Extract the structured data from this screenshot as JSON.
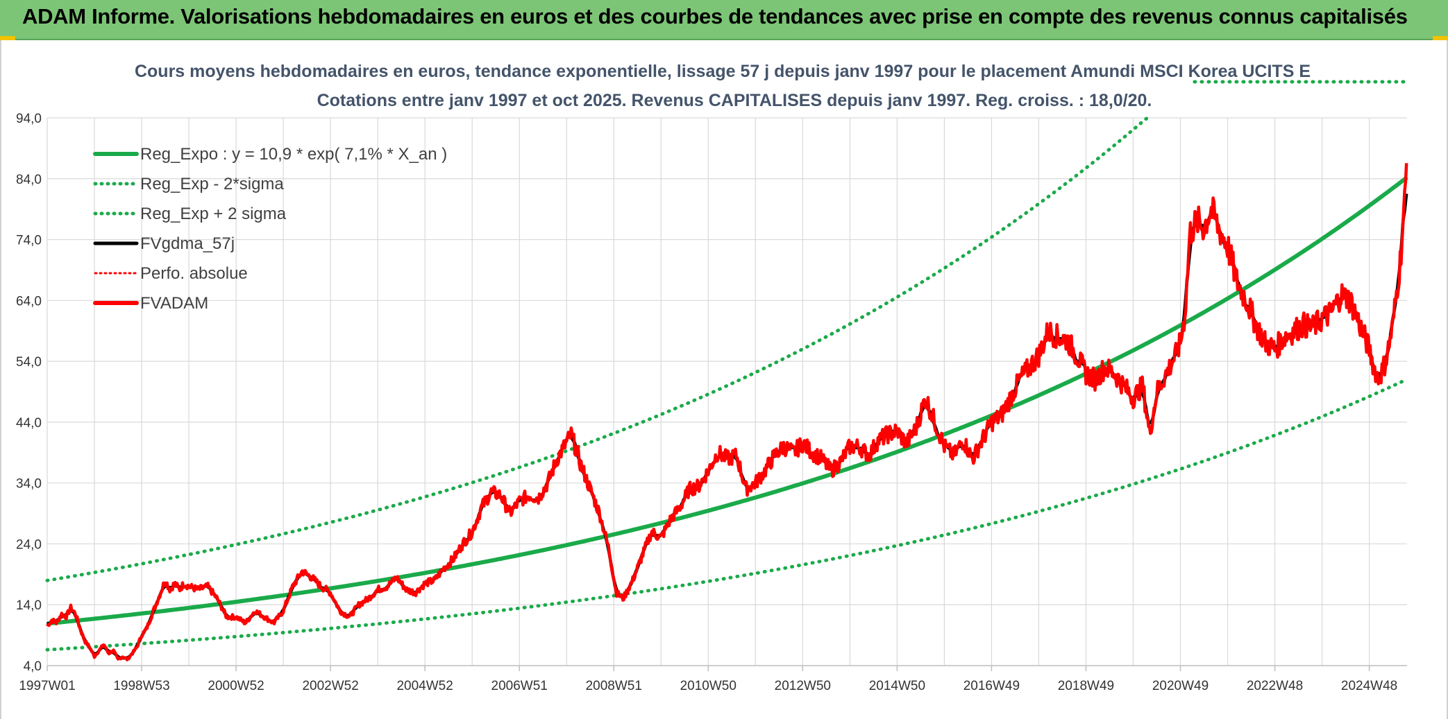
{
  "banner": {
    "title": "ADAM Informe. Valorisations hebdomadaires en euros et des courbes de tendances avec prise en compte des revenus connus capitalisés"
  },
  "colors": {
    "banner_bg": "#7cc576",
    "regression": "#1aaa4a",
    "smooth": "#000000",
    "price": "#ff0000",
    "axis_text": "#333333",
    "title_text": "#44546a",
    "grid": "#d9d9d9"
  },
  "chart_data": {
    "type": "line",
    "title_line1": "Cours moyens hebdomadaires en euros, tendance exponentielle, lissage 57 j depuis janv 1997 pour le placement Amundi MSCI Korea UCITS E",
    "title_line2": "Cotations entre janv 1997 et oct 2025. Revenus CAPITALISES depuis janv 1997. Reg. croiss. : 18,0/20.",
    "ylim": [
      4.0,
      94.0
    ],
    "xlim": [
      1997.0,
      2025.8
    ],
    "grid": true,
    "legend_position": "top-left",
    "y_ticks": [
      "4,0",
      "14,0",
      "24,0",
      "34,0",
      "44,0",
      "54,0",
      "64,0",
      "74,0",
      "84,0",
      "94,0"
    ],
    "x_ticks": [
      {
        "label": "1997W01",
        "year": 1997.0
      },
      {
        "label": "1998W53",
        "year": 1999.0
      },
      {
        "label": "2000W52",
        "year": 2001.0
      },
      {
        "label": "2002W52",
        "year": 2003.0
      },
      {
        "label": "2004W52",
        "year": 2005.0
      },
      {
        "label": "2006W51",
        "year": 2007.0
      },
      {
        "label": "2008W51",
        "year": 2009.0
      },
      {
        "label": "2010W50",
        "year": 2011.0
      },
      {
        "label": "2012W50",
        "year": 2013.0
      },
      {
        "label": "2014W50",
        "year": 2015.0
      },
      {
        "label": "2016W49",
        "year": 2017.0
      },
      {
        "label": "2018W49",
        "year": 2019.0
      },
      {
        "label": "2020W49",
        "year": 2021.0
      },
      {
        "label": "2022W48",
        "year": 2023.0
      },
      {
        "label": "2024W48",
        "year": 2025.0
      }
    ],
    "regression": {
      "a": 10.9,
      "rate": 0.071,
      "sigma2_factor": 1.65
    },
    "legend": [
      {
        "key": "reg",
        "label": "Reg_Expo : y = 10,9 * exp( 7,1% *  X_an )"
      },
      {
        "key": "low",
        "label": "Reg_Exp - 2*sigma"
      },
      {
        "key": "high",
        "label": "Reg_Exp + 2 sigma"
      },
      {
        "key": "smooth",
        "label": "FVgdma_57j"
      },
      {
        "key": "perfo",
        "label": "Perfo. absolue"
      },
      {
        "key": "price",
        "label": "FVADAM"
      }
    ],
    "price_series": {
      "name": "FVADAM",
      "points": [
        [
          1997.0,
          10.5
        ],
        [
          1997.1,
          11.5
        ],
        [
          1997.2,
          11.0
        ],
        [
          1997.3,
          12.5
        ],
        [
          1997.4,
          12.0
        ],
        [
          1997.5,
          13.5
        ],
        [
          1997.6,
          12.5
        ],
        [
          1997.7,
          10.0
        ],
        [
          1997.8,
          8.0
        ],
        [
          1997.9,
          7.0
        ],
        [
          1998.0,
          5.5
        ],
        [
          1998.1,
          6.5
        ],
        [
          1998.2,
          7.5
        ],
        [
          1998.3,
          6.0
        ],
        [
          1998.4,
          6.5
        ],
        [
          1998.5,
          5.0
        ],
        [
          1998.6,
          5.5
        ],
        [
          1998.7,
          5.0
        ],
        [
          1998.8,
          6.0
        ],
        [
          1998.9,
          7.0
        ],
        [
          1999.0,
          9.0
        ],
        [
          1999.1,
          10.0
        ],
        [
          1999.2,
          12.0
        ],
        [
          1999.3,
          14.0
        ],
        [
          1999.4,
          16.0
        ],
        [
          1999.5,
          18.0
        ],
        [
          1999.6,
          16.5
        ],
        [
          1999.7,
          17.5
        ],
        [
          1999.8,
          16.5
        ],
        [
          1999.9,
          17.5
        ],
        [
          2000.0,
          17.0
        ],
        [
          2000.2,
          16.5
        ],
        [
          2000.4,
          17.0
        ],
        [
          2000.6,
          15.0
        ],
        [
          2000.8,
          12.0
        ],
        [
          2001.0,
          12.0
        ],
        [
          2001.2,
          11.0
        ],
        [
          2001.4,
          13.0
        ],
        [
          2001.6,
          12.0
        ],
        [
          2001.8,
          11.0
        ],
        [
          2002.0,
          13.0
        ],
        [
          2002.2,
          17.0
        ],
        [
          2002.4,
          19.5
        ],
        [
          2002.6,
          18.5
        ],
        [
          2002.8,
          17.0
        ],
        [
          2003.0,
          16.0
        ],
        [
          2003.2,
          13.0
        ],
        [
          2003.4,
          12.0
        ],
        [
          2003.6,
          14.0
        ],
        [
          2003.8,
          15.0
        ],
        [
          2004.0,
          16.5
        ],
        [
          2004.2,
          17.0
        ],
        [
          2004.4,
          18.5
        ],
        [
          2004.6,
          16.5
        ],
        [
          2004.8,
          16.0
        ],
        [
          2005.0,
          17.5
        ],
        [
          2005.2,
          18.0
        ],
        [
          2005.4,
          20.0
        ],
        [
          2005.6,
          21.5
        ],
        [
          2005.8,
          24.0
        ],
        [
          2006.0,
          26.0
        ],
        [
          2006.2,
          30.0
        ],
        [
          2006.4,
          32.5
        ],
        [
          2006.6,
          32.0
        ],
        [
          2006.8,
          29.0
        ],
        [
          2007.0,
          31.0
        ],
        [
          2007.2,
          32.0
        ],
        [
          2007.4,
          31.5
        ],
        [
          2007.6,
          34.0
        ],
        [
          2007.8,
          38.0
        ],
        [
          2007.95,
          40.0
        ],
        [
          2008.1,
          42.0
        ],
        [
          2008.3,
          37.0
        ],
        [
          2008.5,
          33.0
        ],
        [
          2008.7,
          29.0
        ],
        [
          2008.9,
          23.0
        ],
        [
          2009.05,
          16.0
        ],
        [
          2009.2,
          15.0
        ],
        [
          2009.4,
          18.0
        ],
        [
          2009.6,
          22.0
        ],
        [
          2009.8,
          26.0
        ],
        [
          2010.0,
          25.0
        ],
        [
          2010.2,
          28.0
        ],
        [
          2010.4,
          30.0
        ],
        [
          2010.6,
          33.0
        ],
        [
          2010.8,
          33.5
        ],
        [
          2011.0,
          36.0
        ],
        [
          2011.2,
          39.0
        ],
        [
          2011.4,
          38.0
        ],
        [
          2011.6,
          38.5
        ],
        [
          2011.8,
          33.0
        ],
        [
          2012.0,
          34.0
        ],
        [
          2012.2,
          36.0
        ],
        [
          2012.4,
          38.5
        ],
        [
          2012.6,
          40.0
        ],
        [
          2012.8,
          39.0
        ],
        [
          2013.0,
          40.5
        ],
        [
          2013.2,
          39.0
        ],
        [
          2013.4,
          38.0
        ],
        [
          2013.6,
          36.0
        ],
        [
          2013.8,
          37.5
        ],
        [
          2014.0,
          40.0
        ],
        [
          2014.2,
          40.0
        ],
        [
          2014.4,
          38.5
        ],
        [
          2014.6,
          41.0
        ],
        [
          2014.8,
          42.0
        ],
        [
          2015.0,
          42.5
        ],
        [
          2015.2,
          40.5
        ],
        [
          2015.4,
          43.0
        ],
        [
          2015.6,
          48.0
        ],
        [
          2015.8,
          44.0
        ],
        [
          2016.0,
          40.0
        ],
        [
          2016.2,
          38.5
        ],
        [
          2016.4,
          41.0
        ],
        [
          2016.6,
          38.0
        ],
        [
          2016.8,
          41.0
        ],
        [
          2017.0,
          44.0
        ],
        [
          2017.2,
          45.0
        ],
        [
          2017.4,
          48.0
        ],
        [
          2017.6,
          51.0
        ],
        [
          2017.8,
          53.0
        ],
        [
          2018.0,
          55.0
        ],
        [
          2018.2,
          59.0
        ],
        [
          2018.4,
          58.0
        ],
        [
          2018.6,
          57.5
        ],
        [
          2018.8,
          55.0
        ],
        [
          2019.0,
          52.0
        ],
        [
          2019.2,
          51.0
        ],
        [
          2019.4,
          53.0
        ],
        [
          2019.6,
          52.0
        ],
        [
          2019.8,
          50.0
        ],
        [
          2020.0,
          48.0
        ],
        [
          2020.2,
          50.0
        ],
        [
          2020.35,
          42.0
        ],
        [
          2020.5,
          49.0
        ],
        [
          2020.7,
          52.0
        ],
        [
          2020.9,
          55.0
        ],
        [
          2021.0,
          57.0
        ],
        [
          2021.1,
          62.0
        ],
        [
          2021.2,
          75.0
        ],
        [
          2021.35,
          77.0
        ],
        [
          2021.5,
          76.0
        ],
        [
          2021.65,
          79.0
        ],
        [
          2021.8,
          76.0
        ],
        [
          2022.0,
          73.0
        ],
        [
          2022.2,
          67.0
        ],
        [
          2022.4,
          64.0
        ],
        [
          2022.6,
          60.0
        ],
        [
          2022.8,
          57.0
        ],
        [
          2023.0,
          56.0
        ],
        [
          2023.2,
          58.0
        ],
        [
          2023.4,
          59.0
        ],
        [
          2023.6,
          60.0
        ],
        [
          2023.8,
          59.5
        ],
        [
          2024.0,
          61.0
        ],
        [
          2024.2,
          62.0
        ],
        [
          2024.4,
          65.0
        ],
        [
          2024.6,
          64.0
        ],
        [
          2024.8,
          60.0
        ],
        [
          2025.0,
          56.0
        ],
        [
          2025.1,
          53.0
        ],
        [
          2025.2,
          51.0
        ],
        [
          2025.35,
          54.0
        ],
        [
          2025.5,
          60.0
        ],
        [
          2025.65,
          70.0
        ],
        [
          2025.75,
          80.0
        ],
        [
          2025.8,
          88.0
        ]
      ]
    }
  }
}
